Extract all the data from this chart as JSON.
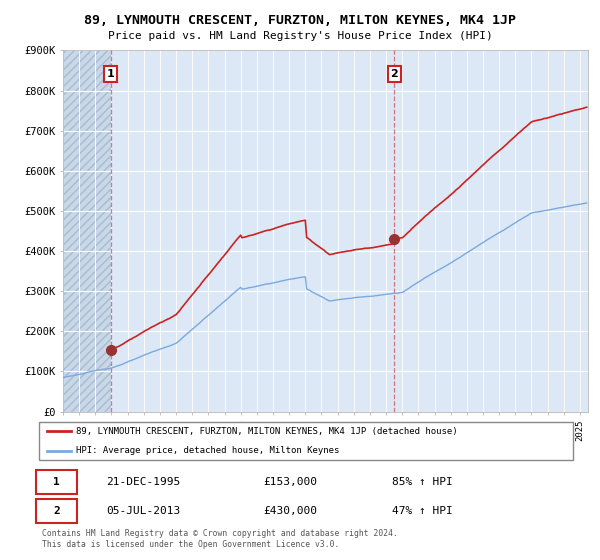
{
  "title": "89, LYNMOUTH CRESCENT, FURZTON, MILTON KEYNES, MK4 1JP",
  "subtitle": "Price paid vs. HM Land Registry's House Price Index (HPI)",
  "hpi_label": "HPI: Average price, detached house, Milton Keynes",
  "property_label": "89, LYNMOUTH CRESCENT, FURZTON, MILTON KEYNES, MK4 1JP (detached house)",
  "sale1_date": "21-DEC-1995",
  "sale1_price": 153000,
  "sale1_hpi": "85% ↑ HPI",
  "sale2_date": "05-JUL-2013",
  "sale2_price": 430000,
  "sale2_hpi": "47% ↑ HPI",
  "footer": "Contains HM Land Registry data © Crown copyright and database right 2024.\nThis data is licensed under the Open Government Licence v3.0.",
  "property_color": "#cc2222",
  "hpi_color": "#7aaadd",
  "background_color": "#dce8f5",
  "ylim": [
    0,
    900000
  ],
  "yticks": [
    0,
    100000,
    200000,
    300000,
    400000,
    500000,
    600000,
    700000,
    800000,
    900000
  ],
  "xlim_start": 1993.0,
  "xlim_end": 2025.5,
  "sale1_year_float": 1995.958,
  "sale2_year_float": 2013.5
}
